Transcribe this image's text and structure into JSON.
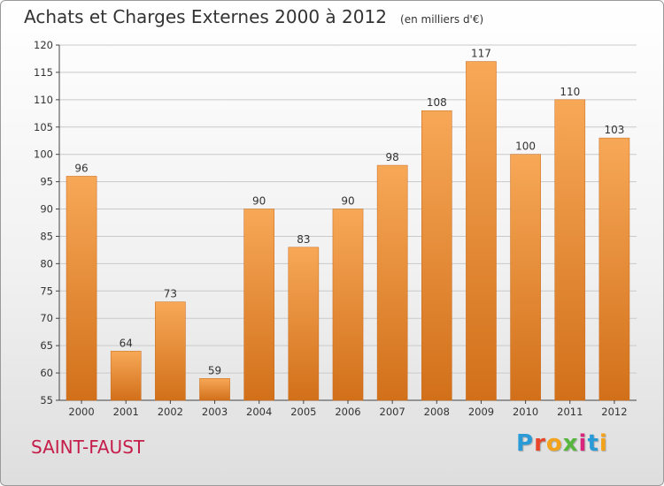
{
  "header": {
    "title": "Achats et Charges Externes 2000 à 2012",
    "subtitle": "(en milliers d'€)"
  },
  "footer": {
    "commune": "SAINT-FAUST",
    "logo": {
      "letters": [
        "P",
        "r",
        "o",
        "x",
        "i",
        "t",
        "i"
      ],
      "colors": [
        "#2b9bd8",
        "#e8462b",
        "#f3a31b",
        "#58b63f",
        "#d8247b",
        "#2b9bd8",
        "#f3a31b"
      ]
    }
  },
  "colors": {
    "bar_light": "#f7a857",
    "bar_dark": "#d2701a",
    "bar_stroke": "#c8681a",
    "grid": "#c9c9c9",
    "axis": "#444444"
  },
  "chart_data": {
    "type": "bar",
    "title": "Achats et Charges Externes 2000 à 2012",
    "subtitle": "(en milliers d'€)",
    "categories": [
      "2000",
      "2001",
      "2002",
      "2003",
      "2004",
      "2005",
      "2006",
      "2007",
      "2008",
      "2009",
      "2010",
      "2011",
      "2012"
    ],
    "values": [
      96,
      64,
      73,
      59,
      90,
      83,
      90,
      98,
      108,
      117,
      100,
      110,
      103
    ],
    "ylim": [
      55,
      120
    ],
    "yticks": [
      55,
      60,
      65,
      70,
      75,
      80,
      85,
      90,
      95,
      100,
      105,
      110,
      115,
      120
    ],
    "grid": true,
    "data_labels": true
  }
}
